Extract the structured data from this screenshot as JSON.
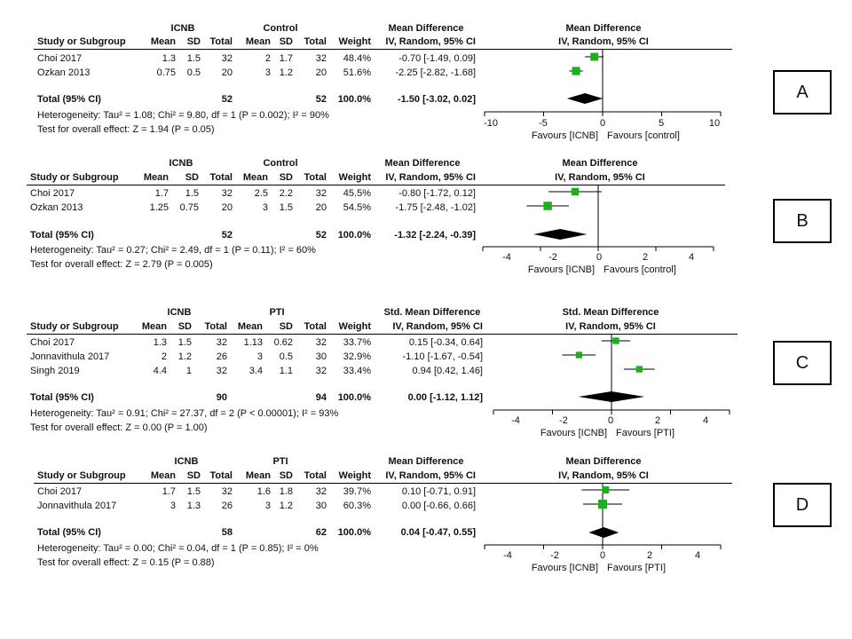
{
  "columns": {
    "study": "Study or Subgroup",
    "mean": "Mean",
    "sd": "SD",
    "total": "Total",
    "weight": "Weight",
    "ci": "IV, Random, 95% CI"
  },
  "colors": {
    "marker": "#19b219",
    "diamond": "#000000",
    "line": "#000000"
  },
  "panels": [
    {
      "label": "A",
      "group1": "ICNB",
      "group2": "Control",
      "effect_header": "Mean Difference",
      "plot_header": "Mean Difference",
      "favours_left": "Favours [ICNB]",
      "favours_right": "Favours [control]",
      "axis_ticks": [
        "-10",
        "-5",
        "0",
        "5",
        "10"
      ],
      "total_label": "Total (95% CI)",
      "total_n1": "52",
      "total_n2": "52",
      "total_weight": "100.0%",
      "total_ci": "-1.50 [-3.02, 0.02]",
      "heterogeneity": "Heterogeneity: Tau² = 1.08; Chi² = 9.80, df = 1 (P = 0.002); I² = 90%",
      "overall": "Test for overall effect: Z = 1.94 (P = 0.05)",
      "studies": [
        {
          "name": "Choi 2017",
          "m1": "1.3",
          "sd1": "1.5",
          "n1": "32",
          "m2": "2",
          "sd2": "1.7",
          "n2": "32",
          "weight": "48.4%",
          "ci": "-0.70 [-1.49, 0.09]"
        },
        {
          "name": "Ozkan 2013",
          "m1": "0.75",
          "sd1": "0.5",
          "n1": "20",
          "m2": "3",
          "sd2": "1.2",
          "n2": "20",
          "weight": "51.6%",
          "ci": "-2.25 [-2.82, -1.68]"
        }
      ]
    },
    {
      "label": "B",
      "group1": "ICNB",
      "group2": "Control",
      "effect_header": "Mean Difference",
      "plot_header": "Mean Difference",
      "favours_left": "Favours [ICNB]",
      "favours_right": "Favours [control]",
      "axis_ticks": [
        "-4",
        "-2",
        "0",
        "2",
        "4"
      ],
      "total_label": "Total (95% CI)",
      "total_n1": "52",
      "total_n2": "52",
      "total_weight": "100.0%",
      "total_ci": "-1.32 [-2.24, -0.39]",
      "heterogeneity": "Heterogeneity: Tau² = 0.27; Chi² = 2.49, df = 1 (P = 0.11); I² = 60%",
      "overall": "Test for overall effect: Z = 2.79 (P = 0.005)",
      "studies": [
        {
          "name": "Choi 2017",
          "m1": "1.7",
          "sd1": "1.5",
          "n1": "32",
          "m2": "2.5",
          "sd2": "2.2",
          "n2": "32",
          "weight": "45.5%",
          "ci": "-0.80 [-1.72, 0.12]"
        },
        {
          "name": "Ozkan 2013",
          "m1": "1.25",
          "sd1": "0.75",
          "n1": "20",
          "m2": "3",
          "sd2": "1.5",
          "n2": "20",
          "weight": "54.5%",
          "ci": "-1.75 [-2.48, -1.02]"
        }
      ]
    },
    {
      "label": "C",
      "group1": "ICNB",
      "group2": "PTI",
      "effect_header": "Std. Mean Difference",
      "plot_header": "Std. Mean Difference",
      "favours_left": "Favours [ICNB]",
      "favours_right": "Favours [PTI]",
      "axis_ticks": [
        "-4",
        "-2",
        "0",
        "2",
        "4"
      ],
      "total_label": "Total (95% CI)",
      "total_n1": "90",
      "total_n2": "94",
      "total_weight": "100.0%",
      "total_ci": "0.00 [-1.12, 1.12]",
      "heterogeneity": "Heterogeneity: Tau² = 0.91; Chi² = 27.37, df = 2 (P < 0.00001); I² = 93%",
      "overall": "Test for overall effect: Z = 0.00 (P = 1.00)",
      "studies": [
        {
          "name": "Choi 2017",
          "m1": "1.3",
          "sd1": "1.5",
          "n1": "32",
          "m2": "1.13",
          "sd2": "0.62",
          "n2": "32",
          "weight": "33.7%",
          "ci": "0.15 [-0.34, 0.64]"
        },
        {
          "name": "Jonnavithula 2017",
          "m1": "2",
          "sd1": "1.2",
          "n1": "26",
          "m2": "3",
          "sd2": "0.5",
          "n2": "30",
          "weight": "32.9%",
          "ci": "-1.10 [-1.67, -0.54]"
        },
        {
          "name": "Singh 2019",
          "m1": "4.4",
          "sd1": "1",
          "n1": "32",
          "m2": "3.4",
          "sd2": "1.1",
          "n2": "32",
          "weight": "33.4%",
          "ci": "0.94 [0.42, 1.46]"
        }
      ]
    },
    {
      "label": "D",
      "group1": "ICNB",
      "group2": "PTI",
      "effect_header": "Mean Difference",
      "plot_header": "Mean Difference",
      "favours_left": "Favours [ICNB]",
      "favours_right": "Favours [PTI]",
      "axis_ticks": [
        "-4",
        "-2",
        "0",
        "2",
        "4"
      ],
      "total_label": "Total (95% CI)",
      "total_n1": "58",
      "total_n2": "62",
      "total_weight": "100.0%",
      "total_ci": "0.04 [-0.47, 0.55]",
      "heterogeneity": "Heterogeneity: Tau² = 0.00; Chi² = 0.04, df = 1 (P = 0.85); I² = 0%",
      "overall": "Test for overall effect: Z = 0.15 (P = 0.88)",
      "studies": [
        {
          "name": "Choi 2017",
          "m1": "1.7",
          "sd1": "1.5",
          "n1": "32",
          "m2": "1.6",
          "sd2": "1.8",
          "n2": "32",
          "weight": "39.7%",
          "ci": "0.10 [-0.71, 0.91]"
        },
        {
          "name": "Jonnavithula 2017",
          "m1": "3",
          "sd1": "1.3",
          "n1": "26",
          "m2": "3",
          "sd2": "1.2",
          "n2": "30",
          "weight": "60.3%",
          "ci": "0.00 [-0.66, 0.66]"
        }
      ]
    }
  ],
  "chart_data": [
    {
      "type": "forest",
      "label": "A",
      "xlim": [
        -10,
        10
      ],
      "ticks": [
        -10,
        -5,
        0,
        5,
        10
      ],
      "studies": [
        {
          "name": "Choi 2017",
          "estimate": -0.7,
          "lower": -1.49,
          "upper": 0.09,
          "weight": 48.4
        },
        {
          "name": "Ozkan 2013",
          "estimate": -2.25,
          "lower": -2.82,
          "upper": -1.68,
          "weight": 51.6
        }
      ],
      "overall": {
        "estimate": -1.5,
        "lower": -3.02,
        "upper": 0.02
      }
    },
    {
      "type": "forest",
      "label": "B",
      "xlim": [
        -4,
        4
      ],
      "ticks": [
        -4,
        -2,
        0,
        2,
        4
      ],
      "studies": [
        {
          "name": "Choi 2017",
          "estimate": -0.8,
          "lower": -1.72,
          "upper": 0.12,
          "weight": 45.5
        },
        {
          "name": "Ozkan 2013",
          "estimate": -1.75,
          "lower": -2.48,
          "upper": -1.02,
          "weight": 54.5
        }
      ],
      "overall": {
        "estimate": -1.32,
        "lower": -2.24,
        "upper": -0.39
      }
    },
    {
      "type": "forest",
      "label": "C",
      "xlim": [
        -4,
        4
      ],
      "ticks": [
        -4,
        -2,
        0,
        2,
        4
      ],
      "studies": [
        {
          "name": "Choi 2017",
          "estimate": 0.15,
          "lower": -0.34,
          "upper": 0.64,
          "weight": 33.7
        },
        {
          "name": "Jonnavithula 2017",
          "estimate": -1.1,
          "lower": -1.67,
          "upper": -0.54,
          "weight": 32.9
        },
        {
          "name": "Singh 2019",
          "estimate": 0.94,
          "lower": 0.42,
          "upper": 1.46,
          "weight": 33.4
        }
      ],
      "overall": {
        "estimate": 0.0,
        "lower": -1.12,
        "upper": 1.12
      }
    },
    {
      "type": "forest",
      "label": "D",
      "xlim": [
        -4,
        4
      ],
      "ticks": [
        -4,
        -2,
        0,
        2,
        4
      ],
      "studies": [
        {
          "name": "Choi 2017",
          "estimate": 0.1,
          "lower": -0.71,
          "upper": 0.91,
          "weight": 39.7
        },
        {
          "name": "Jonnavithula 2017",
          "estimate": 0.0,
          "lower": -0.66,
          "upper": 0.66,
          "weight": 60.3
        }
      ],
      "overall": {
        "estimate": 0.04,
        "lower": -0.47,
        "upper": 0.55
      }
    }
  ]
}
